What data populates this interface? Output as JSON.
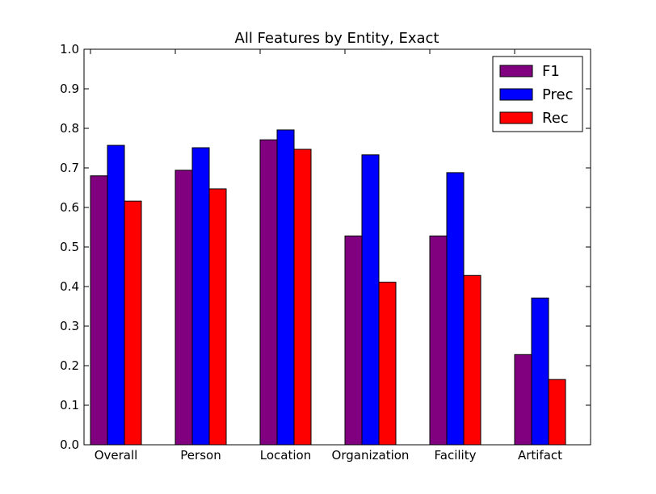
{
  "chart_data": {
    "type": "bar",
    "title": "All Features by Entity, Exact",
    "xlabel": "",
    "ylabel": "",
    "categories": [
      "Overall",
      "Person",
      "Location",
      "Organization",
      "Facility",
      "Artifact"
    ],
    "series": [
      {
        "name": "F1",
        "color": "#800080",
        "values": [
          0.68,
          0.694,
          0.771,
          0.528,
          0.528,
          0.228
        ]
      },
      {
        "name": "Prec",
        "color": "#0000ff",
        "values": [
          0.757,
          0.751,
          0.796,
          0.733,
          0.688,
          0.371
        ]
      },
      {
        "name": "Rec",
        "color": "#ff0000",
        "values": [
          0.616,
          0.647,
          0.747,
          0.411,
          0.428,
          0.165
        ]
      }
    ],
    "ylim": [
      0,
      1.0
    ],
    "yticks": [
      "0.0",
      "0.1",
      "0.2",
      "0.3",
      "0.4",
      "0.5",
      "0.6",
      "0.7",
      "0.8",
      "0.9",
      "1.0"
    ],
    "grid": false,
    "legend_position": "top-right"
  }
}
